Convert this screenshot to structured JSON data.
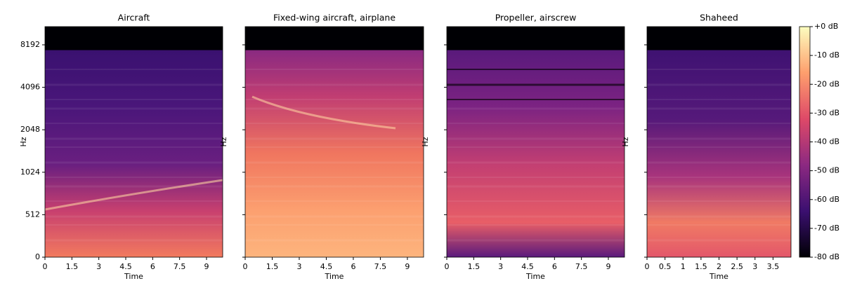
{
  "chart_data": [
    {
      "type": "spectrogram",
      "title": "Aircraft",
      "xlabel": "Time",
      "ylabel": "Hz",
      "yscale": "symlog",
      "xlim": [
        0,
        9.9
      ],
      "xticks": [
        0,
        1.5,
        3,
        4.5,
        6,
        7.5,
        9
      ],
      "ylim": [
        0,
        11025
      ],
      "yticks": [
        0,
        512,
        1024,
        2048,
        4096,
        8192
      ],
      "colormap": "magma"
    },
    {
      "type": "spectrogram",
      "title": "Fixed-wing aircraft, airplane",
      "ylabel": "Hz",
      "xlabel": "Time",
      "yscale": "symlog",
      "xlim": [
        0,
        9.9
      ],
      "xticks": [
        0,
        1.5,
        3,
        4.5,
        6,
        7.5,
        9
      ],
      "ylim": [
        0,
        11025
      ],
      "yticks": [
        0,
        512,
        1024,
        2048,
        4096,
        8192
      ],
      "colormap": "magma"
    },
    {
      "type": "spectrogram",
      "title": "Propeller, airscrew",
      "ylabel": "Hz",
      "xlabel": "Time",
      "yscale": "symlog",
      "xlim": [
        0,
        9.9
      ],
      "xticks": [
        0,
        1.5,
        3,
        4.5,
        6,
        7.5,
        9
      ],
      "ylim": [
        0,
        11025
      ],
      "yticks": [
        0,
        512,
        1024,
        2048,
        4096,
        8192
      ],
      "colormap": "magma"
    },
    {
      "type": "spectrogram",
      "title": "Shaheed",
      "ylabel": "Hz",
      "xlabel": "Time",
      "yscale": "symlog",
      "xlim": [
        0,
        4
      ],
      "xticks": [
        0,
        0.5,
        1,
        1.5,
        2,
        2.5,
        3,
        3.5
      ],
      "ylim": [
        0,
        11025
      ],
      "yticks": [
        0,
        512,
        1024,
        2048,
        4096,
        8192
      ],
      "colormap": "magma"
    },
    {
      "type": "colorbar",
      "colormap": "magma",
      "ylim": [
        -80,
        0
      ],
      "yticks": [
        {
          "value": 0,
          "label": "+0 dB"
        },
        {
          "value": -10,
          "label": "-10 dB"
        },
        {
          "value": -20,
          "label": "-20 dB"
        },
        {
          "value": -30,
          "label": "-30 dB"
        },
        {
          "value": -40,
          "label": "-40 dB"
        },
        {
          "value": -50,
          "label": "-50 dB"
        },
        {
          "value": -60,
          "label": "-60 dB"
        },
        {
          "value": -70,
          "label": "-70 dB"
        },
        {
          "value": -80,
          "label": "-80 dB"
        }
      ]
    }
  ]
}
